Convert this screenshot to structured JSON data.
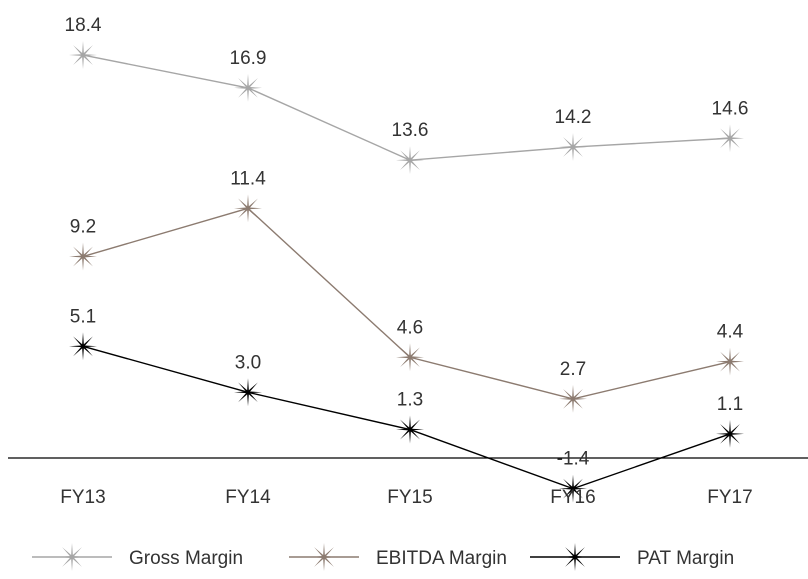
{
  "chart_data": {
    "type": "line",
    "categories": [
      "FY13",
      "FY14",
      "FY15",
      "FY16",
      "FY17"
    ],
    "series": [
      {
        "name": "Gross Margin",
        "values": [
          18.4,
          16.9,
          13.6,
          14.2,
          14.6
        ],
        "labels": [
          "18.4",
          "16.9",
          "13.6",
          "14.2",
          "14.6"
        ],
        "color": "#a6a6a6"
      },
      {
        "name": "EBITDA Margin",
        "values": [
          9.2,
          11.4,
          4.6,
          2.7,
          4.4
        ],
        "labels": [
          "9.2",
          "11.4",
          "4.6",
          "2.7",
          "4.4"
        ],
        "color": "#8c7b70"
      },
      {
        "name": "PAT Margin",
        "values": [
          5.1,
          3.0,
          1.3,
          -1.4,
          1.1
        ],
        "labels": [
          "5.1",
          "3.0",
          "1.3",
          "-1.4",
          "1.1"
        ],
        "color": "#000000"
      }
    ],
    "title": "",
    "xlabel": "",
    "ylabel": "",
    "legend": "bottom",
    "grid": false,
    "marker": "star"
  }
}
